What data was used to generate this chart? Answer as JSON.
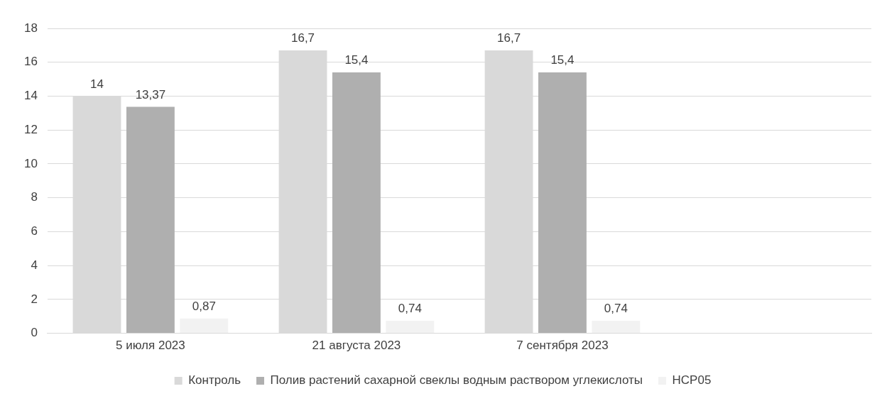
{
  "chart_data": {
    "type": "bar",
    "categories": [
      "5 июля 2023",
      "21 августа 2023",
      "7 сентября 2023",
      null
    ],
    "series": [
      {
        "name": "Контроль",
        "color": "#d9d9d9",
        "values": [
          14,
          16.7,
          16.7,
          null
        ],
        "value_labels": [
          "14",
          "16,7",
          "16,7",
          null
        ]
      },
      {
        "name": "Полив растений сахарной свеклы водным раствором углекислоты",
        "color": "#afafaf",
        "values": [
          13.37,
          15.4,
          15.4,
          null
        ],
        "value_labels": [
          "13,37",
          "15,4",
          "15,4",
          null
        ]
      },
      {
        "name": "НСР05",
        "color": "#f2f2f2",
        "values": [
          0.87,
          0.74,
          0.74,
          null
        ],
        "value_labels": [
          "0,87",
          "0,74",
          "0,74",
          null
        ]
      }
    ],
    "ylim": [
      0,
      18
    ],
    "yticks": [
      0,
      2,
      4,
      6,
      8,
      10,
      12,
      14,
      16,
      18
    ],
    "grid": "y",
    "legend": "bottom"
  }
}
